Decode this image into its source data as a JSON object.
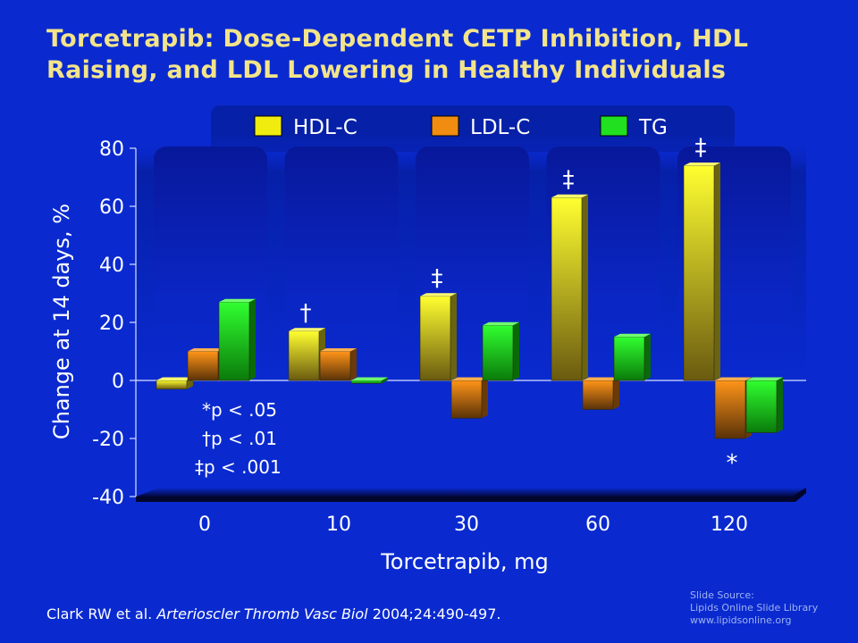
{
  "slide": {
    "title": "Torcetrapib: Dose-Dependent CETP Inhibition, HDL Raising, and LDL Lowering in Healthy Individuals",
    "citation": {
      "authors": "Clark RW et al. ",
      "journal": "Arterioscler Thromb Vasc Biol",
      "details": " 2004;24:490-497."
    },
    "source": {
      "line1": "Slide Source:",
      "line2": "Lipids Online Slide Library",
      "line3": "www.lipidsonline.org"
    }
  },
  "chart_data": {
    "type": "bar",
    "xlabel": "Torcetrapib, mg",
    "ylabel": "Change at 14 days, %",
    "ylim": [
      -40,
      80
    ],
    "yticks": [
      80,
      60,
      40,
      20,
      0,
      -20,
      -40
    ],
    "categories": [
      "0",
      "10",
      "30",
      "60",
      "120"
    ],
    "series": [
      {
        "name": "HDL-C",
        "color": "#f0ec10",
        "values": [
          -3,
          17,
          29,
          63,
          74
        ]
      },
      {
        "name": "LDL-C",
        "color": "#f08c10",
        "values": [
          10,
          10,
          -13,
          -10,
          -20
        ]
      },
      {
        "name": "TG",
        "color": "#20e020",
        "values": [
          27,
          -1,
          19,
          15,
          -18
        ]
      }
    ],
    "legend_position": "top",
    "significance_markers": [
      {
        "category": "10",
        "series": "HDL-C",
        "mark": "†"
      },
      {
        "category": "30",
        "series": "HDL-C",
        "mark": "‡"
      },
      {
        "category": "60",
        "series": "HDL-C",
        "mark": "‡"
      },
      {
        "category": "120",
        "series": "HDL-C",
        "mark": "‡"
      },
      {
        "category": "120",
        "series": "LDL-C",
        "mark": "*"
      }
    ],
    "footnotes": [
      "*p < .05",
      "†p < .01",
      "‡p < .001"
    ]
  }
}
